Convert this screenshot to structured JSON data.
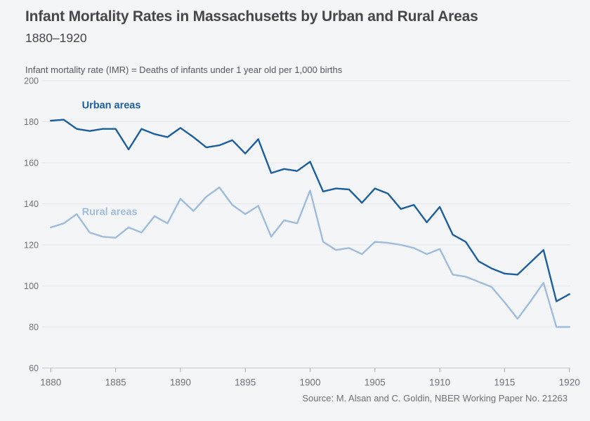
{
  "header": {
    "title": "Infant Mortality Rates in Massachusetts by Urban and Rural Areas",
    "subtitle": "1880–1920",
    "note": "Infant mortality rate (IMR) = Deaths of infants under 1 year old per 1,000 births"
  },
  "footer": {
    "source": "Source: M. Alsan and C. Goldin, NBER Working Paper No. 21263"
  },
  "colors": {
    "background": "#f4f5f7",
    "gridline": "#e3e6ea",
    "axis_line": "#c7cbd1",
    "tick_mark": "#a9adb3",
    "axis_label": "#6f7378",
    "urban": "#1d5f9d",
    "rural": "#9fbcdc"
  },
  "chart_data": {
    "type": "line",
    "title": "Infant Mortality Rates in Massachusetts by Urban and Rural Areas",
    "xlabel": "",
    "ylabel": "Infant mortality rate (IMR), deaths of infants under 1 year old per 1,000 births",
    "x": [
      1880,
      1881,
      1882,
      1883,
      1884,
      1885,
      1886,
      1887,
      1888,
      1889,
      1890,
      1891,
      1892,
      1893,
      1894,
      1895,
      1896,
      1897,
      1898,
      1899,
      1900,
      1901,
      1902,
      1903,
      1904,
      1905,
      1906,
      1907,
      1908,
      1909,
      1910,
      1911,
      1912,
      1913,
      1914,
      1915,
      1916,
      1917,
      1918,
      1919,
      1920
    ],
    "series": [
      {
        "name": "Urban areas",
        "color": "#1d5f9d",
        "label_anchor": {
          "year": 1882.4,
          "value": 186.5
        },
        "values": [
          180.5,
          181,
          176.5,
          175.5,
          176.5,
          176.5,
          166.5,
          176.5,
          174,
          172.5,
          177,
          172.5,
          167.5,
          168.5,
          171,
          164.5,
          171.5,
          155,
          157,
          156,
          160.5,
          146,
          147.5,
          147,
          140.5,
          147.5,
          145,
          137.5,
          139.5,
          131,
          138.5,
          125,
          121.5,
          112,
          108.5,
          106,
          105.5,
          111.5,
          117.5,
          92.5,
          96
        ]
      },
      {
        "name": "Rural areas",
        "color": "#9fbcdc",
        "label_anchor": {
          "year": 1882.4,
          "value": 134.5
        },
        "values": [
          128.5,
          130.5,
          135,
          126,
          124,
          123.5,
          128.5,
          126,
          134,
          130.5,
          142.5,
          136.5,
          143.5,
          148,
          139.5,
          135,
          139,
          124,
          132,
          130.5,
          146.5,
          121.5,
          117.5,
          118.5,
          115.5,
          121.5,
          121,
          120,
          118.5,
          115.5,
          118,
          105.5,
          104.5,
          102,
          99.5,
          92,
          84,
          92.5,
          101.5,
          80,
          80
        ]
      }
    ],
    "ylim": [
      60,
      200
    ],
    "yticks": [
      60,
      80,
      100,
      120,
      140,
      160,
      180,
      200
    ],
    "xticks": [
      1880,
      1885,
      1890,
      1895,
      1900,
      1905,
      1910,
      1915,
      1920
    ],
    "grid": true,
    "legend_position": "inline-labels"
  }
}
